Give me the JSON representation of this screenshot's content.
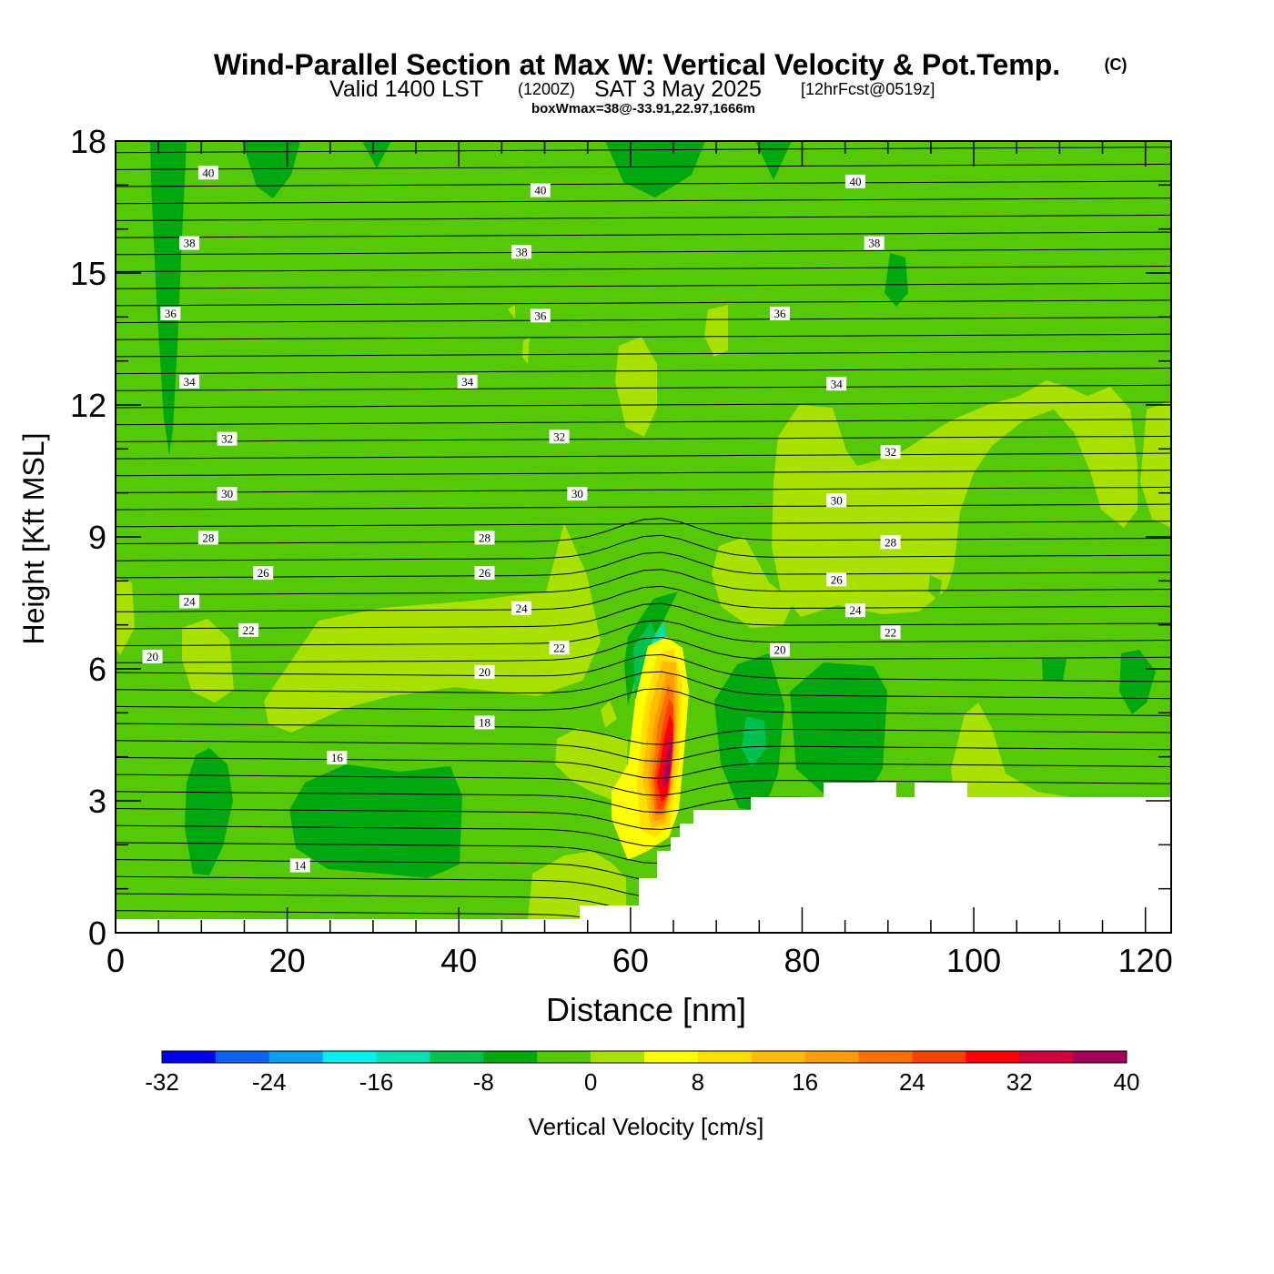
{
  "header": {
    "title": "Wind-Parallel Section at Max W: Vertical Velocity & Pot.Temp.",
    "copyright": "(C)",
    "valid_prefix": "Valid 1400 LST",
    "valid_utc": "(1200Z)",
    "valid_date": "SAT 3 May 2025",
    "forecast": "[12hrFcst@0519z]",
    "box_wmax": "boxWmax=38@-33.91,22.97,1666m"
  },
  "chart_data": {
    "type": "contour",
    "xlabel": "Distance [nm]",
    "ylabel": "Height [Kft MSL]",
    "xlim": [
      0,
      123
    ],
    "ylim": [
      0,
      18
    ],
    "x_ticks": [
      0,
      20,
      40,
      60,
      80,
      100,
      120
    ],
    "y_ticks": [
      0,
      3,
      6,
      9,
      12,
      15,
      18
    ],
    "colorbar": {
      "label": "Vertical Velocity [cm/s]",
      "ticks": [
        -32,
        -24,
        -16,
        -8,
        0,
        8,
        16,
        24,
        32,
        40
      ],
      "levels": [
        -32,
        -28,
        -24,
        -20,
        -16,
        -12,
        -8,
        -4,
        0,
        4,
        8,
        12,
        16,
        20,
        24,
        28,
        32,
        36,
        40
      ],
      "colors": [
        "#0000f0",
        "#0a64f0",
        "#0aa0f0",
        "#00f0f0",
        "#00e0b0",
        "#00c050",
        "#00a810",
        "#55c808",
        "#a8e000",
        "#ffff00",
        "#ffde00",
        "#ffbc00",
        "#ff9c00",
        "#ff7000",
        "#ff4000",
        "#ff0000",
        "#d2003c",
        "#a0005a"
      ]
    },
    "background_color": "#55c808",
    "theta_contours": {
      "label_values": [
        14,
        16,
        18,
        20,
        22,
        24,
        26,
        28,
        30,
        32,
        34,
        36,
        38,
        40
      ],
      "labels": [
        {
          "x": 10.8,
          "y": 17.25,
          "v": "40"
        },
        {
          "x": 49.5,
          "y": 16.85,
          "v": "40"
        },
        {
          "x": 86.2,
          "y": 17.05,
          "v": "40"
        },
        {
          "x": 8.6,
          "y": 15.65,
          "v": "38"
        },
        {
          "x": 47.3,
          "y": 15.45,
          "v": "38"
        },
        {
          "x": 88.4,
          "y": 15.65,
          "v": "38"
        },
        {
          "x": 6.4,
          "y": 14.05,
          "v": "36"
        },
        {
          "x": 49.5,
          "y": 14.0,
          "v": "36"
        },
        {
          "x": 77.4,
          "y": 14.05,
          "v": "36"
        },
        {
          "x": 8.6,
          "y": 12.5,
          "v": "34"
        },
        {
          "x": 41.0,
          "y": 12.5,
          "v": "34"
        },
        {
          "x": 84.0,
          "y": 12.45,
          "v": "34"
        },
        {
          "x": 13.0,
          "y": 11.2,
          "v": "32"
        },
        {
          "x": 51.7,
          "y": 11.25,
          "v": "32"
        },
        {
          "x": 90.3,
          "y": 10.9,
          "v": "32"
        },
        {
          "x": 13.0,
          "y": 9.95,
          "v": "30"
        },
        {
          "x": 53.8,
          "y": 9.95,
          "v": "30"
        },
        {
          "x": 84.0,
          "y": 9.8,
          "v": "30"
        },
        {
          "x": 10.8,
          "y": 8.95,
          "v": "28"
        },
        {
          "x": 43.0,
          "y": 8.95,
          "v": "28"
        },
        {
          "x": 90.3,
          "y": 8.85,
          "v": "28"
        },
        {
          "x": 17.2,
          "y": 8.15,
          "v": "26"
        },
        {
          "x": 43.0,
          "y": 8.15,
          "v": "26"
        },
        {
          "x": 84.0,
          "y": 8.0,
          "v": "26"
        },
        {
          "x": 8.6,
          "y": 7.5,
          "v": "24"
        },
        {
          "x": 47.3,
          "y": 7.35,
          "v": "24"
        },
        {
          "x": 86.2,
          "y": 7.3,
          "v": "24"
        },
        {
          "x": 15.5,
          "y": 6.85,
          "v": "22"
        },
        {
          "x": 51.7,
          "y": 6.45,
          "v": "22"
        },
        {
          "x": 90.3,
          "y": 6.8,
          "v": "22"
        },
        {
          "x": 4.3,
          "y": 6.25,
          "v": "20"
        },
        {
          "x": 43.0,
          "y": 5.9,
          "v": "20"
        },
        {
          "x": 77.4,
          "y": 6.4,
          "v": "20"
        },
        {
          "x": 43.0,
          "y": 4.75,
          "v": "18"
        },
        {
          "x": 25.8,
          "y": 3.95,
          "v": "16"
        },
        {
          "x": 21.5,
          "y": 1.5,
          "v": "14"
        }
      ]
    }
  }
}
